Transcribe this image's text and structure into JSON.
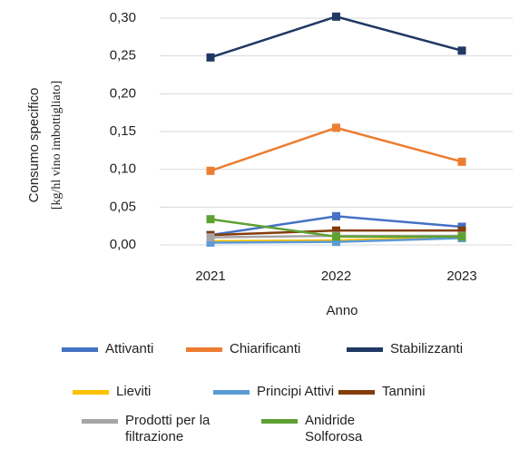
{
  "chart_data": {
    "type": "line",
    "ylabel": [
      "Consumo specifico",
      "[kg/hl vino imbottigliato]"
    ],
    "xlabel": "Anno",
    "categories": [
      "2021",
      "2022",
      "2023"
    ],
    "ylim": [
      0,
      0.3
    ],
    "yticks": [
      {
        "value": 0,
        "label": "0,00"
      },
      {
        "value": 0.05,
        "label": "0,05"
      },
      {
        "value": 0.1,
        "label": "0,10"
      },
      {
        "value": 0.15,
        "label": "0,15"
      },
      {
        "value": 0.2,
        "label": "0,20"
      },
      {
        "value": 0.25,
        "label": "0,25"
      },
      {
        "value": 0.3,
        "label": "0,30"
      }
    ],
    "grid": true,
    "series": [
      {
        "name": "Attivanti",
        "color": "#4472c4",
        "values": [
          0.013,
          0.038,
          0.024
        ]
      },
      {
        "name": "Chiarificanti",
        "color": "#ed7d31",
        "values": [
          0.098,
          0.155,
          0.11
        ]
      },
      {
        "name": "Stabilizzanti",
        "color": "#1f3864",
        "values": [
          0.248,
          0.302,
          0.257
        ]
      },
      {
        "name": "Lieviti",
        "color": "#ffc000",
        "values": [
          0.005,
          0.006,
          0.01
        ]
      },
      {
        "name": "Principi Attivi",
        "color": "#5b9bd5",
        "values": [
          0.003,
          0.004,
          0.009
        ]
      },
      {
        "name": "Tannini",
        "color": "#843c0c",
        "values": [
          0.013,
          0.019,
          0.019
        ]
      },
      {
        "name": "Prodotti per la filtrazione",
        "color": "#a5a5a5",
        "values": [
          0.01,
          0.012,
          0.012
        ]
      },
      {
        "name": "Anidride Solforosa",
        "color": "#5ea133",
        "values": [
          0.034,
          0.011,
          0.011
        ]
      }
    ]
  }
}
